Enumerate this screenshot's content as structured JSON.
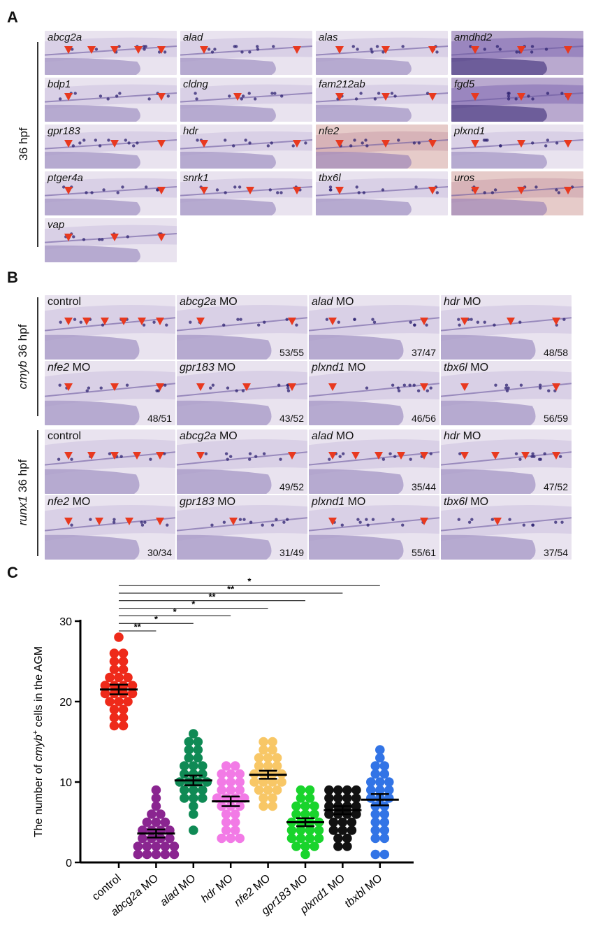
{
  "panels": {
    "a_letter": "A",
    "b_letter": "B",
    "c_letter": "C",
    "a_stage": "36 hpf",
    "b_stage_1_gene": "cmyb",
    "b_stage_1_rest": " 36 hpf",
    "b_stage_2_gene": "runx1",
    "b_stage_2_rest": " 36 hpf"
  },
  "panel_a_tiles": [
    {
      "gene": "abcg2a",
      "arrows": 5,
      "tone": "light"
    },
    {
      "gene": "alad",
      "arrows": 2,
      "tone": "light"
    },
    {
      "gene": "alas",
      "arrows": 3,
      "tone": "light"
    },
    {
      "gene": "amdhd2",
      "arrows": 3,
      "tone": "dark"
    },
    {
      "gene": "bdp1",
      "arrows": 2,
      "tone": "light"
    },
    {
      "gene": "cldng",
      "arrows": 1,
      "tone": "light"
    },
    {
      "gene": "fam212ab",
      "arrows": 3,
      "tone": "light"
    },
    {
      "gene": "fgd5",
      "arrows": 3,
      "tone": "dark"
    },
    {
      "gene": "gpr183",
      "arrows": 3,
      "tone": "light"
    },
    {
      "gene": "hdr",
      "arrows": 2,
      "tone": "light"
    },
    {
      "gene": "nfe2",
      "arrows": 3,
      "tone": "pink"
    },
    {
      "gene": "plxnd1",
      "arrows": 3,
      "tone": "light"
    },
    {
      "gene": "ptger4a",
      "arrows": 2,
      "tone": "light"
    },
    {
      "gene": "snrk1",
      "arrows": 3,
      "tone": "light"
    },
    {
      "gene": "tbx6l",
      "arrows": 2,
      "tone": "light"
    },
    {
      "gene": "uros",
      "arrows": 3,
      "tone": "pink"
    },
    {
      "gene": "vap",
      "arrows": 3,
      "tone": "light"
    }
  ],
  "panel_b_tiles": [
    {
      "gene": "control",
      "italic": false,
      "suffix": "",
      "ratio": "",
      "arrows": 6
    },
    {
      "gene": "abcg2a",
      "italic": true,
      "suffix": " MO",
      "ratio": "53/55",
      "arrows": 2
    },
    {
      "gene": "alad",
      "italic": true,
      "suffix": " MO",
      "ratio": "37/47",
      "arrows": 2
    },
    {
      "gene": "hdr",
      "italic": true,
      "suffix": " MO",
      "ratio": "48/58",
      "arrows": 3
    },
    {
      "gene": "nfe2",
      "italic": true,
      "suffix": " MO",
      "ratio": "48/51",
      "arrows": 3
    },
    {
      "gene": "gpr183",
      "italic": true,
      "suffix": " MO",
      "ratio": "43/52",
      "arrows": 3
    },
    {
      "gene": "plxnd1",
      "italic": true,
      "suffix": " MO",
      "ratio": "46/56",
      "arrows": 2
    },
    {
      "gene": "tbx6l",
      "italic": true,
      "suffix": " MO",
      "ratio": "56/59",
      "arrows": 2
    },
    {
      "gene": "control",
      "italic": false,
      "suffix": "",
      "ratio": "",
      "arrows": 5
    },
    {
      "gene": "abcg2a",
      "italic": true,
      "suffix": " MO",
      "ratio": "49/52",
      "arrows": 2
    },
    {
      "gene": "alad",
      "italic": true,
      "suffix": " MO",
      "ratio": "35/44",
      "arrows": 5
    },
    {
      "gene": "hdr",
      "italic": true,
      "suffix": " MO",
      "ratio": "47/52",
      "arrows": 4
    },
    {
      "gene": "nfe2",
      "italic": true,
      "suffix": " MO",
      "ratio": "30/34",
      "arrows": 4
    },
    {
      "gene": "gpr183",
      "italic": true,
      "suffix": " MO",
      "ratio": "31/49",
      "arrows": 1
    },
    {
      "gene": "plxnd1",
      "italic": true,
      "suffix": " MO",
      "ratio": "55/61",
      "arrows": 2
    },
    {
      "gene": "tbx6l",
      "italic": true,
      "suffix": " MO",
      "ratio": "37/54",
      "arrows": 1
    }
  ],
  "chart_data": {
    "type": "scatter",
    "ylabel_prefix": "The number of ",
    "ylabel_gene": "cmyb",
    "ylabel_sup": "+",
    "ylabel_suffix": " cells in the AGM",
    "ylim": [
      0,
      30
    ],
    "yticks": [
      0,
      10,
      20,
      30
    ],
    "categories": [
      {
        "gene": "control",
        "italic": false,
        "suffix": ""
      },
      {
        "gene": "abcg2a",
        "italic": true,
        "suffix": " MO"
      },
      {
        "gene": "alad",
        "italic": true,
        "suffix": " MO"
      },
      {
        "gene": "hdr",
        "italic": true,
        "suffix": " MO"
      },
      {
        "gene": "nfe2",
        "italic": true,
        "suffix": " MO"
      },
      {
        "gene": "gpr183",
        "italic": true,
        "suffix": " MO"
      },
      {
        "gene": "plxnd1",
        "italic": true,
        "suffix": " MO"
      },
      {
        "gene": "tbxbl",
        "italic": true,
        "suffix": " MO"
      }
    ],
    "series": [
      {
        "color": "#ee2a1a",
        "mean": 21.5,
        "sem": 0.6,
        "values": [
          28,
          26,
          26,
          25,
          25,
          24,
          24,
          23,
          23,
          23,
          22,
          22,
          22,
          22,
          21,
          21,
          21,
          21,
          20,
          20,
          20,
          19,
          19,
          18,
          18,
          17,
          17
        ]
      },
      {
        "color": "#8a2590",
        "mean": 3.6,
        "sem": 0.5,
        "values": [
          9,
          8,
          7,
          6,
          6,
          5,
          5,
          5,
          4,
          4,
          4,
          4,
          3,
          3,
          3,
          3,
          2,
          2,
          2,
          2,
          2,
          1,
          1,
          1,
          1,
          1
        ]
      },
      {
        "color": "#0f8a55",
        "mean": 10.2,
        "sem": 0.6,
        "values": [
          16,
          15,
          15,
          14,
          14,
          13,
          13,
          12,
          12,
          12,
          11,
          11,
          11,
          10,
          10,
          10,
          10,
          9,
          9,
          9,
          8,
          8,
          8,
          7,
          6,
          4
        ]
      },
      {
        "color": "#f27ae6",
        "mean": 7.6,
        "sem": 0.6,
        "values": [
          12,
          12,
          11,
          11,
          11,
          10,
          10,
          10,
          9,
          9,
          9,
          8,
          8,
          8,
          8,
          7,
          7,
          7,
          6,
          6,
          5,
          5,
          4,
          4,
          3,
          3,
          3
        ]
      },
      {
        "color": "#f8c766",
        "mean": 10.9,
        "sem": 0.5,
        "values": [
          15,
          15,
          14,
          14,
          13,
          13,
          13,
          12,
          12,
          12,
          11,
          11,
          11,
          11,
          10,
          10,
          10,
          10,
          9,
          9,
          9,
          8,
          8,
          7,
          7
        ]
      },
      {
        "color": "#19d42c",
        "mean": 5.0,
        "sem": 0.5,
        "values": [
          9,
          9,
          8,
          8,
          7,
          7,
          7,
          6,
          6,
          6,
          5,
          5,
          5,
          5,
          4,
          4,
          4,
          4,
          3,
          3,
          3,
          3,
          2,
          2,
          2,
          1
        ]
      },
      {
        "color": "#111111",
        "mean": 6.5,
        "sem": 0.5,
        "values": [
          9,
          9,
          9,
          9,
          8,
          8,
          8,
          8,
          7,
          7,
          7,
          7,
          6,
          6,
          6,
          6,
          5,
          5,
          5,
          4,
          4,
          4,
          3,
          3,
          2,
          2
        ]
      },
      {
        "color": "#3274e6",
        "mean": 7.8,
        "sem": 0.7,
        "values": [
          14,
          13,
          12,
          12,
          11,
          11,
          10,
          10,
          10,
          9,
          9,
          9,
          8,
          8,
          8,
          7,
          7,
          6,
          6,
          5,
          5,
          4,
          4,
          3,
          3,
          1,
          1
        ]
      }
    ],
    "comparisons": [
      {
        "to": 1,
        "label": "**"
      },
      {
        "to": 2,
        "label": "*"
      },
      {
        "to": 3,
        "label": "*"
      },
      {
        "to": 4,
        "label": "*"
      },
      {
        "to": 5,
        "label": "**"
      },
      {
        "to": 6,
        "label": "**"
      },
      {
        "to": 7,
        "label": "*"
      }
    ]
  }
}
